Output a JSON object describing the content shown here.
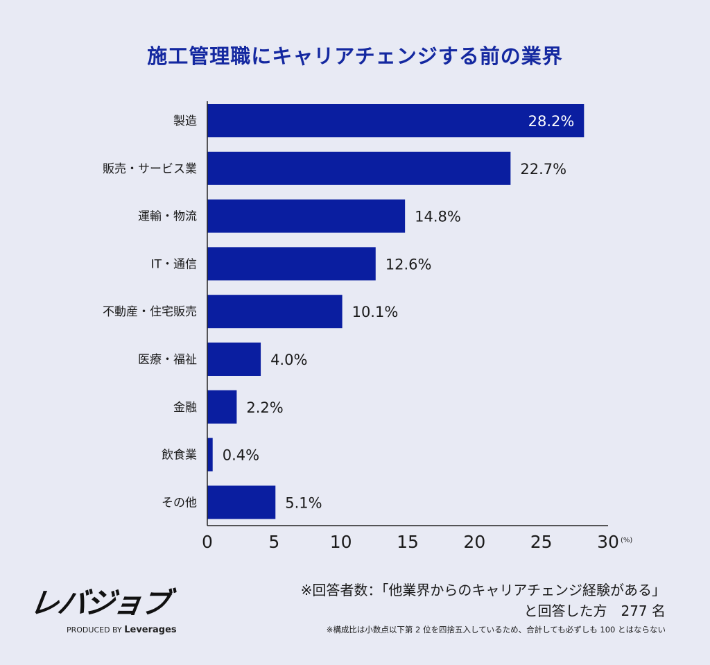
{
  "chart_data": {
    "type": "bar",
    "orientation": "horizontal",
    "title": "施工管理職にキャリアチェンジする前の業界",
    "categories": [
      "製造",
      "販売・サービス業",
      "運輸・物流",
      "IT・通信",
      "不動産・住宅販売",
      "医療・福祉",
      "金融",
      "飲食業",
      "その他"
    ],
    "values": [
      28.2,
      22.7,
      14.8,
      12.6,
      10.1,
      4.0,
      2.2,
      0.4,
      5.1
    ],
    "data_labels": [
      "28.2%",
      "22.7%",
      "14.8%",
      "12.6%",
      "10.1%",
      "4.0%",
      "2.2%",
      "0.4%",
      "5.1%"
    ],
    "xlim": [
      0,
      30
    ],
    "xticks": [
      0,
      5,
      10,
      15,
      20,
      25,
      30
    ],
    "xunit": "(%)",
    "grid": false,
    "bar_color": "#0a1ea0",
    "title_color": "#1428a0",
    "background": "#e8eaf4"
  },
  "logo": {
    "name": "レバジョブ",
    "produced_by": "PRODUCED BY",
    "brand": "Leverages"
  },
  "note": {
    "line1": "※回答者数：「他業界からのキャリアチェンジ経験がある」",
    "line2": "と回答した方　277 名",
    "line3": "※構成比は小数点以下第 2 位を四捨五入しているため、合計しても必ずしも 100 とはならない"
  }
}
